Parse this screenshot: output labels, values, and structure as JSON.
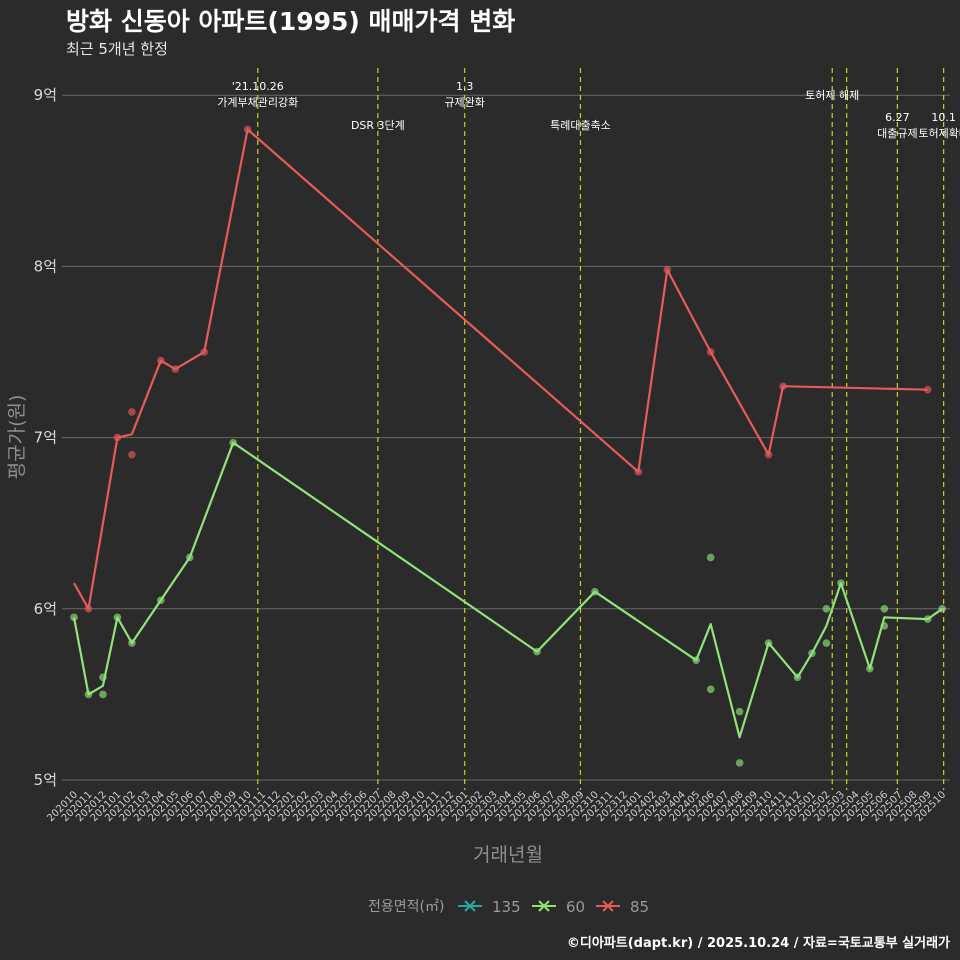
{
  "chart_data": {
    "type": "line",
    "title": "방화 신동아 아파트(1995) 매매가격 변화",
    "subtitle": "최근 5개년 한정",
    "xlabel": "거래년월",
    "ylabel": "평균가(원)",
    "y_unit_suffix": "억",
    "ylim": [
      4.9,
      9.1
    ],
    "yticks": [
      5,
      6,
      7,
      8,
      9
    ],
    "ytick_labels": [
      "5억",
      "6억",
      "7억",
      "8억",
      "9억"
    ],
    "x_categories": [
      "202010",
      "202011",
      "202012",
      "202101",
      "202102",
      "202103",
      "202104",
      "202105",
      "202106",
      "202107",
      "202108",
      "202109",
      "202110",
      "202111",
      "202112",
      "202201",
      "202202",
      "202203",
      "202204",
      "202205",
      "202206",
      "202207",
      "202208",
      "202209",
      "202210",
      "202211",
      "202212",
      "202301",
      "202302",
      "202303",
      "202304",
      "202305",
      "202306",
      "202307",
      "202308",
      "202309",
      "202310",
      "202311",
      "202312",
      "202401",
      "202402",
      "202403",
      "202404",
      "202405",
      "202406",
      "202407",
      "202408",
      "202409",
      "202410",
      "202411",
      "202412",
      "202501",
      "202502",
      "202503",
      "202504",
      "202505",
      "202506",
      "202507",
      "202508",
      "202509",
      "202510"
    ],
    "events": [
      {
        "month": "202110.7",
        "label": [
          "'21.10.26",
          "가계부채관리강화"
        ],
        "row": 0
      },
      {
        "month": "202207",
        "label": [
          "DSR 3단계"
        ],
        "row": 1
      },
      {
        "month": "202301",
        "label": [
          "1.3",
          "규제완화"
        ],
        "row": 0
      },
      {
        "month": "202309",
        "label": [
          "특례대출축소"
        ],
        "row": 1
      },
      {
        "month": "202502.4",
        "label": [
          "토허제 해제"
        ],
        "row": 2
      },
      {
        "month": "202503.4",
        "label": [],
        "row": 2
      },
      {
        "month": "202506.9",
        "label": [
          "6.27",
          "대출규제"
        ],
        "row": 3
      },
      {
        "month": "202510.1",
        "label": [
          "10.1",
          "토허제확대"
        ],
        "row": 3
      }
    ],
    "legend": {
      "title": "전용면적(㎡)",
      "entries": [
        {
          "name": "135",
          "color": "#2aa5a5"
        },
        {
          "name": "60",
          "color": "#90e27a"
        },
        {
          "name": "85",
          "color": "#e65a5a"
        }
      ]
    },
    "series": [
      {
        "name": "60",
        "color": "#90e27a",
        "points": [
          [
            "202010",
            5.95
          ],
          [
            "202011",
            5.5
          ],
          [
            "202012",
            5.6
          ],
          [
            "202012",
            5.5
          ],
          [
            "202101",
            5.95
          ],
          [
            "202102",
            5.8
          ],
          [
            "202104",
            6.05
          ],
          [
            "202106",
            6.3
          ],
          [
            "202109",
            6.97
          ],
          [
            "202306",
            5.75
          ],
          [
            "202310",
            6.1
          ],
          [
            "202405",
            5.7
          ],
          [
            "202406",
            6.3
          ],
          [
            "202406",
            5.53
          ],
          [
            "202408",
            5.4
          ],
          [
            "202408",
            5.1
          ],
          [
            "202410",
            5.8
          ],
          [
            "202412",
            5.6
          ],
          [
            "202501",
            5.74
          ],
          [
            "202502",
            6.0
          ],
          [
            "202502",
            5.8
          ],
          [
            "202503",
            6.15
          ],
          [
            "202505",
            5.65
          ],
          [
            "202506",
            6.0
          ],
          [
            "202506",
            5.9
          ],
          [
            "202509",
            5.94
          ],
          [
            "202510",
            6.0
          ]
        ],
        "line": [
          [
            "202010",
            5.95
          ],
          [
            "202011",
            5.5
          ],
          [
            "202012",
            5.55
          ],
          [
            "202101",
            5.95
          ],
          [
            "202102",
            5.8
          ],
          [
            "202104",
            6.05
          ],
          [
            "202106",
            6.3
          ],
          [
            "202109",
            6.97
          ],
          [
            "202306",
            5.75
          ],
          [
            "202310",
            6.1
          ],
          [
            "202405",
            5.7
          ],
          [
            "202406",
            5.91
          ],
          [
            "202408",
            5.25
          ],
          [
            "202410",
            5.8
          ],
          [
            "202412",
            5.6
          ],
          [
            "202501",
            5.74
          ],
          [
            "202502",
            5.9
          ],
          [
            "202503",
            6.15
          ],
          [
            "202505",
            5.65
          ],
          [
            "202506",
            5.95
          ],
          [
            "202509",
            5.94
          ],
          [
            "202510",
            6.0
          ]
        ]
      },
      {
        "name": "85",
        "color": "#e65a5a",
        "points": [
          [
            "202011",
            6.0
          ],
          [
            "202101",
            7.0
          ],
          [
            "202102",
            7.15
          ],
          [
            "202102",
            6.9
          ],
          [
            "202104",
            7.45
          ],
          [
            "202105",
            7.4
          ],
          [
            "202107",
            7.5
          ],
          [
            "202110",
            8.8
          ],
          [
            "202401",
            6.8
          ],
          [
            "202403",
            7.98
          ],
          [
            "202406",
            7.5
          ],
          [
            "202410",
            6.9
          ],
          [
            "202411",
            7.3
          ],
          [
            "202509",
            7.28
          ]
        ],
        "line": [
          [
            "202010",
            6.15
          ],
          [
            "202011",
            6.0
          ],
          [
            "202101",
            7.0
          ],
          [
            "202102",
            7.02
          ],
          [
            "202104",
            7.45
          ],
          [
            "202105",
            7.4
          ],
          [
            "202107",
            7.5
          ],
          [
            "202110",
            8.8
          ],
          [
            "202401",
            6.8
          ],
          [
            "202403",
            7.98
          ],
          [
            "202406",
            7.5
          ],
          [
            "202410",
            6.9
          ],
          [
            "202411",
            7.3
          ],
          [
            "202509",
            7.28
          ]
        ]
      }
    ]
  },
  "caption": "©디아파트(dapt.kr) / 2025.10.24 / 자료=국토교통부 실거래가"
}
